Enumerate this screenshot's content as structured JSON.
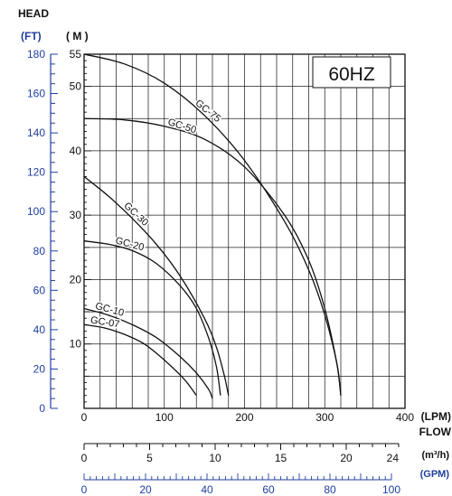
{
  "chart_data": {
    "type": "line",
    "title": "60HZ",
    "ylabel": "HEAD",
    "xlabel": "FLOW",
    "y_units": {
      "ft": "(FT)",
      "m": "( M )"
    },
    "x_units": {
      "lpm": "(LPM)",
      "m3h": "(m³/h)",
      "gpm": "(GPM)"
    },
    "xlim_lpm": [
      0,
      400
    ],
    "ylim_m": [
      0,
      55
    ],
    "ylim_ft": [
      0,
      180
    ],
    "grid": true,
    "ticks": {
      "lpm": [
        "0",
        "100",
        "200",
        "300",
        "400"
      ],
      "m": [
        "10",
        "20",
        "30",
        "40",
        "50",
        "55"
      ],
      "ft": [
        "0",
        "20",
        "40",
        "60",
        "80",
        "100",
        "120",
        "140",
        "160",
        "180"
      ],
      "m3h": [
        "0",
        "5",
        "10",
        "15",
        "20",
        "24"
      ],
      "gpm": [
        "0",
        "20",
        "40",
        "60",
        "80",
        "100"
      ]
    },
    "series": [
      {
        "name": "GC-75",
        "x": [
          0,
          50,
          100,
          150,
          200,
          250,
          280,
          300,
          315,
          320
        ],
        "y": [
          55,
          53.5,
          50.5,
          45.5,
          38.5,
          29,
          21.5,
          14.5,
          7,
          2
        ]
      },
      {
        "name": "GC-50",
        "x": [
          0,
          50,
          100,
          150,
          200,
          250,
          280,
          300,
          315,
          320
        ],
        "y": [
          45,
          44.8,
          43.8,
          41.8,
          37.5,
          30,
          23,
          15.5,
          7,
          2
        ]
      },
      {
        "name": "GC-30",
        "x": [
          0,
          30,
          60,
          90,
          120,
          150,
          165,
          175,
          180
        ],
        "y": [
          36,
          33,
          29.5,
          25.5,
          20.5,
          14,
          9.5,
          5,
          2
        ]
      },
      {
        "name": "GC-20",
        "x": [
          0,
          30,
          60,
          90,
          120,
          140,
          155,
          165,
          170
        ],
        "y": [
          26,
          25.5,
          24.5,
          22.5,
          19,
          15.5,
          11,
          6.5,
          2
        ]
      },
      {
        "name": "GC-10",
        "x": [
          0,
          30,
          60,
          90,
          120,
          140,
          155,
          160
        ],
        "y": [
          15.5,
          14.5,
          13,
          11,
          8,
          5.5,
          3,
          1.5
        ]
      },
      {
        "name": "GC-07",
        "x": [
          0,
          25,
          50,
          75,
          100,
          125,
          140
        ],
        "y": [
          13,
          12.5,
          11.5,
          10,
          7.5,
          4.5,
          2
        ]
      }
    ]
  }
}
